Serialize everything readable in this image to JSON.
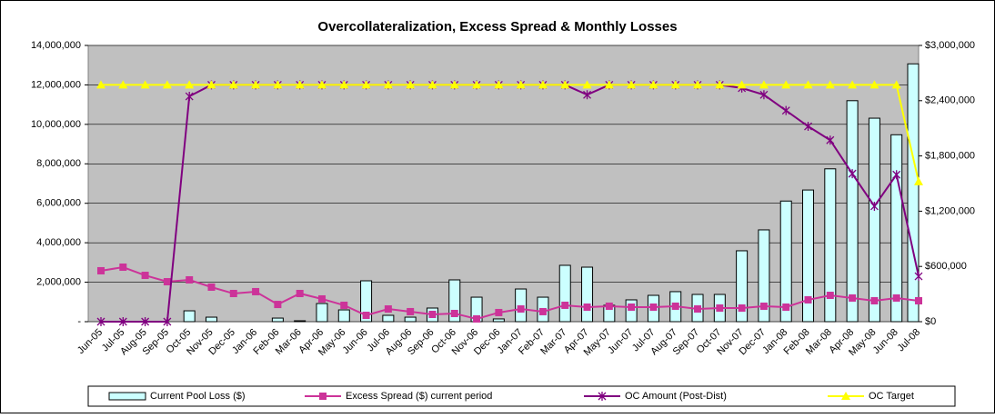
{
  "chart_data": {
    "type": "combo",
    "title": "Overcollateralization, Excess Spread & Monthly Losses",
    "categories": [
      "Jun-05",
      "Jul-05",
      "Aug-05",
      "Sep-05",
      "Oct-05",
      "Nov-05",
      "Dec-05",
      "Jan-06",
      "Feb-06",
      "Mar-06",
      "Apr-06",
      "May-06",
      "Jun-06",
      "Jul-06",
      "Aug-06",
      "Sep-06",
      "Oct-06",
      "Nov-06",
      "Dec-06",
      "Jan-07",
      "Feb-07",
      "Mar-07",
      "Apr-07",
      "May-07",
      "Jun-07",
      "Jul-07",
      "Aug-07",
      "Sep-07",
      "Oct-07",
      "Nov-07",
      "Dec-07",
      "Jan-08",
      "Feb-08",
      "Mar-08",
      "Apr-08",
      "May-08",
      "Jun-08",
      "Jul-08"
    ],
    "ylim": [
      0,
      14000000
    ],
    "yticks": [
      {
        "value": 0,
        "label": "-"
      },
      {
        "value": 2000000,
        "label": "2,000,000"
      },
      {
        "value": 4000000,
        "label": "4,000,000"
      },
      {
        "value": 6000000,
        "label": "6,000,000"
      },
      {
        "value": 8000000,
        "label": "8,000,000"
      },
      {
        "value": 10000000,
        "label": "10,000,000"
      },
      {
        "value": 12000000,
        "label": "12,000,000"
      },
      {
        "value": 14000000,
        "label": "14,000,000"
      }
    ],
    "y2lim": [
      0,
      3000000
    ],
    "y2ticks": [
      {
        "value": 0,
        "label": "$0"
      },
      {
        "value": 600000,
        "label": "$600,000"
      },
      {
        "value": 1200000,
        "label": "$1,200,000"
      },
      {
        "value": 1800000,
        "label": "$1,800,000"
      },
      {
        "value": 2400000,
        "label": "$2,400,000"
      },
      {
        "value": 3000000,
        "label": "$3,000,000"
      }
    ],
    "grid": true,
    "plot_background": "#c0c0c0",
    "legend": "bottom",
    "series": [
      {
        "name": "Current Pool Loss ($)",
        "type": "bar",
        "axis": "y2",
        "color": "#ccffff",
        "values": [
          0,
          0,
          0,
          0,
          118000,
          49000,
          0,
          0,
          39000,
          10000,
          197000,
          128000,
          444000,
          69000,
          49000,
          148000,
          454000,
          266000,
          30000,
          355000,
          266000,
          612000,
          592000,
          178000,
          237000,
          286000,
          326000,
          296000,
          296000,
          770000,
          997000,
          1310000,
          1430000,
          1660000,
          2400000,
          2210000,
          2030000,
          2800000
        ]
      },
      {
        "name": "Excess Spread ($) current period",
        "type": "line",
        "marker": "square",
        "axis": "y2",
        "color": "#cc3399",
        "values": [
          553000,
          592000,
          503000,
          434000,
          454000,
          375000,
          306000,
          326000,
          187000,
          306000,
          247000,
          178000,
          69000,
          138000,
          109000,
          79000,
          89000,
          30000,
          99000,
          138000,
          109000,
          178000,
          158000,
          168000,
          158000,
          158000,
          168000,
          138000,
          148000,
          148000,
          168000,
          158000,
          237000,
          286000,
          257000,
          227000,
          257000,
          227000
        ]
      },
      {
        "name": "OC Amount (Post-Dist)",
        "type": "line",
        "marker": "star",
        "color": "#800080",
        "values": [
          0,
          0,
          0,
          0,
          11420000,
          12000000,
          12000000,
          12000000,
          12000000,
          12000000,
          12000000,
          12000000,
          12000000,
          12000000,
          12000000,
          12000000,
          12000000,
          12000000,
          12000000,
          12000000,
          12000000,
          12000000,
          11500000,
          12000000,
          12000000,
          12000000,
          12000000,
          12000000,
          12000000,
          11840000,
          11500000,
          10700000,
          9900000,
          9200000,
          7500000,
          5850000,
          7450000,
          2300000
        ]
      },
      {
        "name": "OC Target",
        "type": "line",
        "marker": "triangle",
        "color": "#ffff00",
        "values": [
          12000000,
          12000000,
          12000000,
          12000000,
          12000000,
          12000000,
          12000000,
          12000000,
          12000000,
          12000000,
          12000000,
          12000000,
          12000000,
          12000000,
          12000000,
          12000000,
          12000000,
          12000000,
          12000000,
          12000000,
          12000000,
          12000000,
          12000000,
          12000000,
          12000000,
          12000000,
          12000000,
          12000000,
          12000000,
          12000000,
          12000000,
          12000000,
          12000000,
          12000000,
          12000000,
          12000000,
          12000000,
          7100000
        ]
      }
    ]
  }
}
